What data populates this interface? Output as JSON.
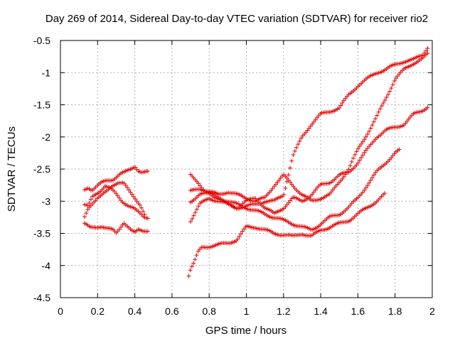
{
  "chart_data": {
    "type": "scatter",
    "title": "Day 269 of 2014, Sidereal Day-to-day VTEC variation (SDTVAR) for receiver rio2",
    "xlabel": "GPS time / hours",
    "ylabel": "SDTVAR / TECUs",
    "xlim": [
      0,
      2
    ],
    "ylim": [
      -4.5,
      -0.5
    ],
    "xticks": [
      0,
      0.2,
      0.4,
      0.6,
      0.8,
      1,
      1.2,
      1.4,
      1.6,
      1.8,
      2
    ],
    "yticks": [
      -0.5,
      -1,
      -1.5,
      -2,
      -2.5,
      -3,
      -3.5,
      -4,
      -4.5
    ],
    "xtick_labels": [
      "0",
      "0.2",
      "0.4",
      "0.6",
      "0.8",
      "1",
      "1.2",
      "1.4",
      "1.6",
      "1.8",
      "2"
    ],
    "ytick_labels": [
      "-0.5",
      "-1",
      "-1.5",
      "-2",
      "-2.5",
      "-3",
      "-3.5",
      "-4",
      "-4.5"
    ],
    "grid": true,
    "marker": "plus",
    "color": "#e00000",
    "series": [
      {
        "x": [
          0.13,
          0.16,
          0.2,
          0.22,
          0.25,
          0.28,
          0.3,
          0.32,
          0.34,
          0.36,
          0.38,
          0.4,
          0.42,
          0.44,
          0.47
        ],
        "y": [
          -3.35,
          -3.42,
          -3.4,
          -3.38,
          -3.42,
          -3.45,
          -3.5,
          -3.42,
          -3.32,
          -3.38,
          -3.45,
          -3.5,
          -3.45,
          -3.46,
          -3.45
        ]
      },
      {
        "x": [
          0.13,
          0.15,
          0.17,
          0.19,
          0.22,
          0.25,
          0.28,
          0.3,
          0.32,
          0.35,
          0.38,
          0.4,
          0.42,
          0.44,
          0.47
        ],
        "y": [
          -2.82,
          -2.78,
          -2.82,
          -2.78,
          -2.72,
          -2.68,
          -2.66,
          -2.62,
          -2.58,
          -2.55,
          -2.5,
          -2.45,
          -2.52,
          -2.55,
          -2.55
        ]
      },
      {
        "x": [
          0.13,
          0.15,
          0.17,
          0.19,
          0.21,
          0.24,
          0.27,
          0.3,
          0.33,
          0.36,
          0.39,
          0.42,
          0.45,
          0.47
        ],
        "y": [
          -3.05,
          -3.08,
          -2.95,
          -2.9,
          -2.85,
          -2.75,
          -2.8,
          -2.9,
          -3.0,
          -3.05,
          -3.1,
          -3.18,
          -3.25,
          -3.25
        ]
      },
      {
        "x": [
          0.13,
          0.15,
          0.18,
          0.2,
          0.22,
          0.25,
          0.28,
          0.31,
          0.34,
          0.37,
          0.4,
          0.43,
          0.46
        ],
        "y": [
          -3.25,
          -3.1,
          -3.0,
          -2.95,
          -2.92,
          -2.85,
          -2.75,
          -2.7,
          -2.72,
          -2.85,
          -2.95,
          -3.05,
          -3.25
        ]
      },
      {
        "x": [
          0.69,
          0.7,
          0.72,
          0.74,
          0.76,
          0.8,
          0.85,
          0.9,
          0.95,
          1.0,
          1.05,
          1.1,
          1.15,
          1.2,
          1.25,
          1.3,
          1.35,
          1.4,
          1.45,
          1.5,
          1.55,
          1.6,
          1.65,
          1.7,
          1.75
        ],
        "y": [
          -4.15,
          -4.05,
          -3.95,
          -3.8,
          -3.72,
          -3.7,
          -3.68,
          -3.65,
          -3.6,
          -3.4,
          -3.4,
          -3.45,
          -3.5,
          -3.52,
          -3.55,
          -3.5,
          -3.55,
          -3.45,
          -3.4,
          -3.35,
          -3.3,
          -3.2,
          -3.1,
          -3.0,
          -2.88
        ]
      },
      {
        "x": [
          0.7,
          0.74,
          0.78,
          0.82,
          0.86,
          0.9,
          0.95,
          1.0,
          1.05,
          1.1,
          1.15,
          1.2,
          1.25,
          1.3,
          1.35,
          1.4,
          1.45,
          1.5,
          1.55,
          1.6,
          1.65,
          1.7,
          1.75,
          1.8,
          1.83
        ],
        "y": [
          -2.6,
          -2.7,
          -2.85,
          -2.9,
          -2.95,
          -3.0,
          -3.05,
          -3.1,
          -3.15,
          -3.2,
          -3.25,
          -3.3,
          -3.35,
          -3.4,
          -3.45,
          -3.35,
          -3.25,
          -3.2,
          -3.1,
          -2.95,
          -2.75,
          -2.55,
          -2.4,
          -2.25,
          -2.2
        ]
      },
      {
        "x": [
          0.7,
          0.75,
          0.8,
          0.85,
          0.9,
          0.95,
          1.0,
          1.05,
          1.1,
          1.15,
          1.2,
          1.25,
          1.3,
          1.35,
          1.4,
          1.45,
          1.5,
          1.55,
          1.6,
          1.65,
          1.7,
          1.75,
          1.8,
          1.85,
          1.9,
          1.95,
          1.98
        ],
        "y": [
          -3.3,
          -3.05,
          -2.95,
          -3.0,
          -3.05,
          -3.1,
          -3.0,
          -2.95,
          -3.1,
          -3.2,
          -3.1,
          -2.95,
          -3.0,
          -2.9,
          -2.75,
          -2.7,
          -2.6,
          -2.55,
          -2.4,
          -2.2,
          -2.0,
          -1.9,
          -1.85,
          -1.8,
          -1.65,
          -1.58,
          -1.52
        ]
      },
      {
        "x": [
          0.7,
          0.75,
          0.8,
          0.85,
          0.9,
          0.95,
          1.0,
          1.05,
          1.1,
          1.15,
          1.2,
          1.25,
          1.3,
          1.35,
          1.4,
          1.45,
          1.5,
          1.55,
          1.6,
          1.65,
          1.7,
          1.75,
          1.8,
          1.85,
          1.9,
          1.95,
          1.98
        ],
        "y": [
          -2.85,
          -2.8,
          -2.85,
          -2.9,
          -2.85,
          -2.9,
          -2.95,
          -3.0,
          -2.95,
          -2.75,
          -2.6,
          -2.75,
          -2.9,
          -3.0,
          -2.95,
          -2.9,
          -2.7,
          -2.5,
          -2.2,
          -1.95,
          -1.7,
          -1.4,
          -1.1,
          -0.95,
          -0.85,
          -0.78,
          -0.7
        ]
      },
      {
        "x": [
          0.7,
          0.75,
          0.8,
          0.85,
          0.9,
          0.95,
          1.0,
          1.05,
          1.1,
          1.15,
          1.2,
          1.25,
          1.3,
          1.35,
          1.4,
          1.45,
          1.5,
          1.55,
          1.6,
          1.65,
          1.7,
          1.75,
          1.8,
          1.85,
          1.9,
          1.95,
          1.98
        ],
        "y": [
          -3.0,
          -2.9,
          -2.88,
          -2.95,
          -3.05,
          -3.1,
          -3.08,
          -3.05,
          -3.0,
          -3.0,
          -2.9,
          -2.3,
          -2.0,
          -1.8,
          -1.65,
          -1.6,
          -1.55,
          -1.35,
          -1.2,
          -1.1,
          -1.0,
          -0.95,
          -0.88,
          -0.82,
          -0.8,
          -0.72,
          -0.58
        ]
      }
    ]
  }
}
